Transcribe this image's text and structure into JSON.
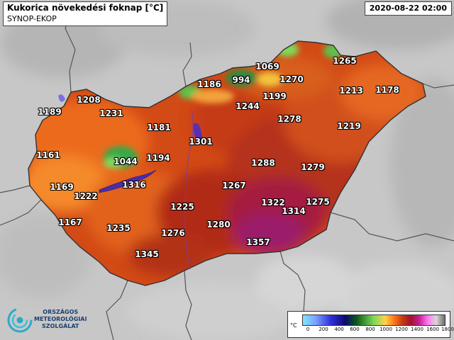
{
  "header": {
    "title": "Kukorica növekedési foknap [°C]",
    "subtitle": "SYNOP-EKOP",
    "datetime": "2020-08-22 02:00"
  },
  "legend": {
    "unit": "°C",
    "ticks": [
      "0",
      "200",
      "400",
      "600",
      "800",
      "1000",
      "1200",
      "1400",
      "1600",
      "1800"
    ]
  },
  "logo": {
    "line1": "ORSZÁGOS",
    "line2": "METEOROLÓGIAI",
    "line3": "SZOLGÁLAT",
    "icon": "swirl-logo-icon"
  },
  "stations": [
    {
      "label": "1265"
    },
    {
      "label": "1069"
    },
    {
      "label": "994"
    },
    {
      "label": "1270"
    },
    {
      "label": "1186"
    },
    {
      "label": "1199"
    },
    {
      "label": "1213"
    },
    {
      "label": "1178"
    },
    {
      "label": "1244"
    },
    {
      "label": "1208"
    },
    {
      "label": "1189"
    },
    {
      "label": "1231"
    },
    {
      "label": "1278"
    },
    {
      "label": "1181"
    },
    {
      "label": "1219"
    },
    {
      "label": "1301"
    },
    {
      "label": "1161"
    },
    {
      "label": "1044"
    },
    {
      "label": "1194"
    },
    {
      "label": "1288"
    },
    {
      "label": "1279"
    },
    {
      "label": "1169"
    },
    {
      "label": "1316"
    },
    {
      "label": "1222"
    },
    {
      "label": "1267"
    },
    {
      "label": "1322"
    },
    {
      "label": "1275"
    },
    {
      "label": "1314"
    },
    {
      "label": "1225"
    },
    {
      "label": "1167"
    },
    {
      "label": "1235"
    },
    {
      "label": "1276"
    },
    {
      "label": "1280"
    },
    {
      "label": "1357"
    },
    {
      "label": "1345"
    }
  ]
}
